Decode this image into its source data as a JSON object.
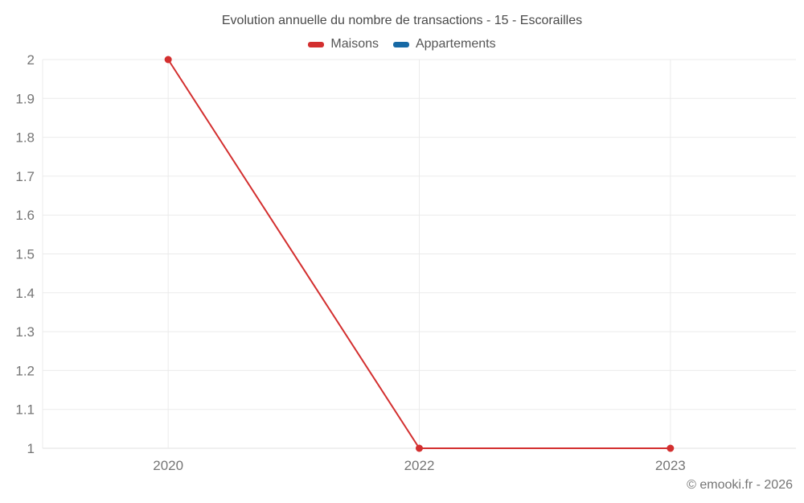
{
  "page": {
    "title": "Evolution annuelle du nombre de transactions - 15 - Escorailles",
    "copyright": "© emooki.fr - 2026"
  },
  "legend": [
    {
      "label": "Maisons",
      "color": "#d32f2f"
    },
    {
      "label": "Appartements",
      "color": "#1769a5"
    }
  ],
  "chart_data": {
    "type": "line",
    "title": "Evolution annuelle du nombre de transactions - 15 - Escorailles",
    "categories": [
      "2020",
      "2022",
      "2023"
    ],
    "series": [
      {
        "name": "Maisons",
        "color": "#d32f2f",
        "values": [
          2,
          1,
          1
        ]
      },
      {
        "name": "Appartements",
        "color": "#1769a5",
        "values": []
      }
    ],
    "xlabel": "",
    "ylabel": "",
    "ylim": [
      1,
      2
    ],
    "ytick_step": 0.1,
    "ytick_labels": [
      "1",
      "1.1",
      "1.2",
      "1.3",
      "1.4",
      "1.5",
      "1.6",
      "1.7",
      "1.8",
      "1.9",
      "2"
    ],
    "grid": true,
    "legend_position": "top",
    "colors": {
      "grid_line": "#ebebeb",
      "baseline": "#e0e0e0",
      "axis_label": "#757575"
    }
  }
}
